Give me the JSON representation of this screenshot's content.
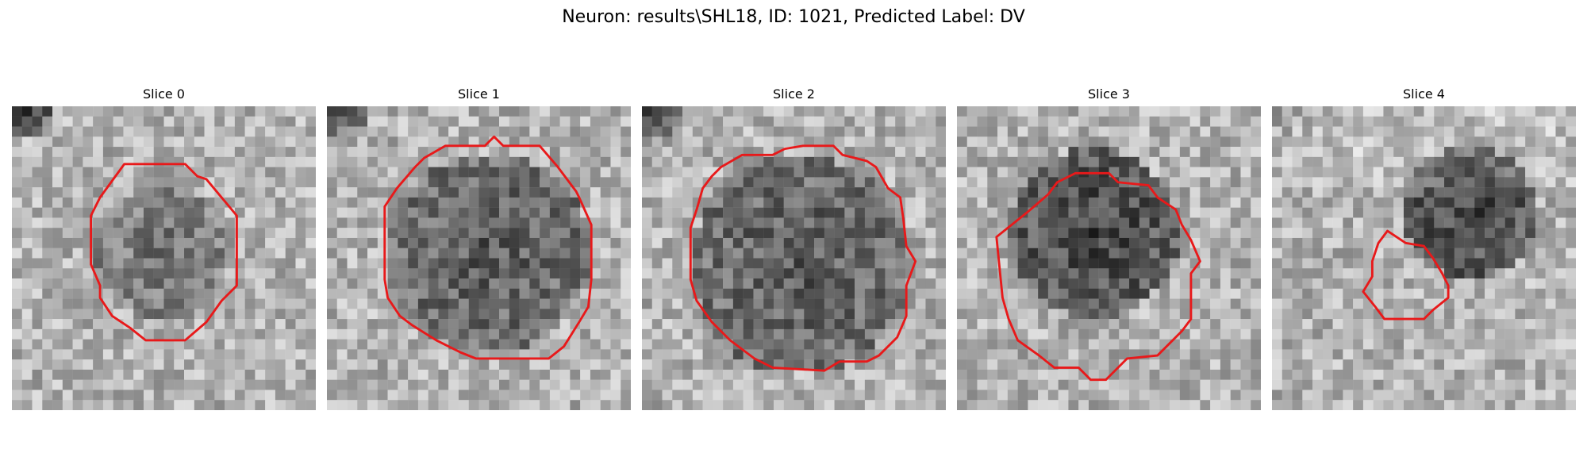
{
  "figure": {
    "title": "Neuron: results\\SHL18, ID: 1021, Predicted Label: DV"
  },
  "panels": [
    {
      "title": "Slice 0"
    },
    {
      "title": "Slice 1"
    },
    {
      "title": "Slice 2"
    },
    {
      "title": "Slice 3"
    },
    {
      "title": "Slice 4"
    }
  ],
  "colors": {
    "contour": "#e8191a",
    "colormap": "gray"
  }
}
